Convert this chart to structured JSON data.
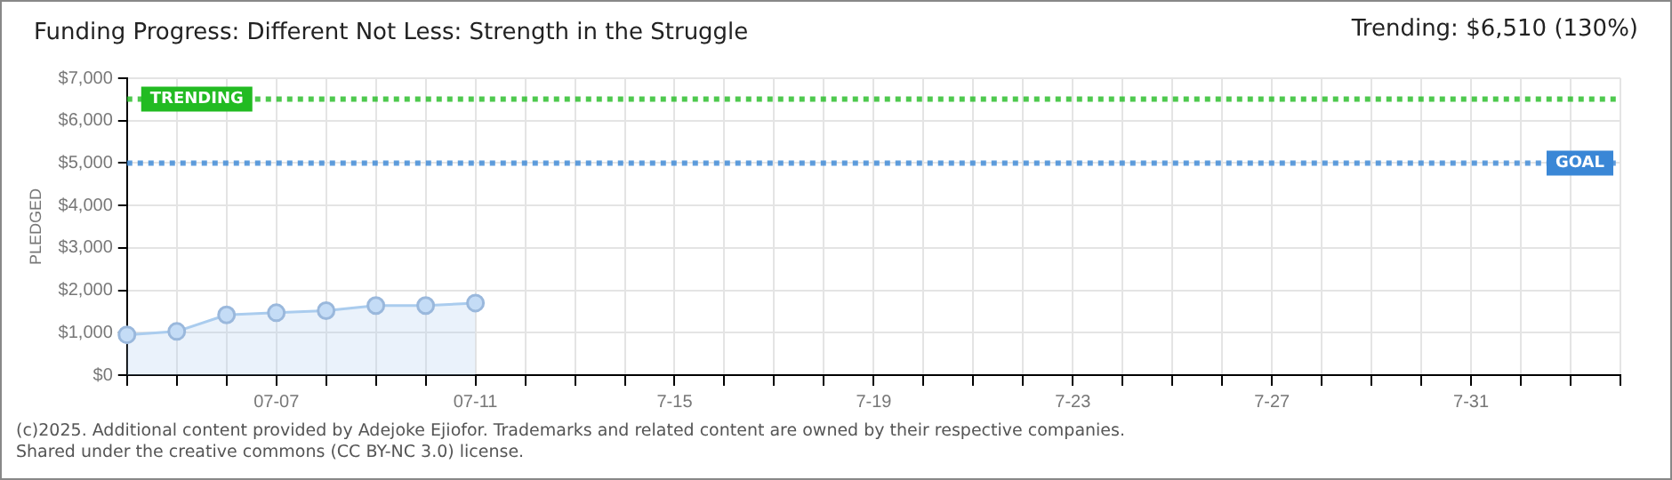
{
  "chart_data": {
    "type": "area",
    "title": "Funding Progress: Different Not Less: Strength in the Struggle",
    "subtitle": "Trending: $6,510 (130%)",
    "ylabel": "PLEDGED",
    "categories": [
      null,
      null,
      null,
      "07-07",
      null,
      null,
      null,
      "07-11",
      null,
      null,
      null,
      "7-15",
      null,
      null,
      null,
      "7-19",
      null,
      null,
      null,
      "7-23",
      null,
      null,
      null,
      "7-27",
      null,
      null,
      null,
      "7-31",
      null,
      null,
      null
    ],
    "series": [
      {
        "color": "#aaccee",
        "values": [
          950,
          1030,
          1420,
          1470,
          1520,
          1640,
          1640,
          1700,
          null,
          null,
          null,
          null,
          null,
          null,
          null,
          null,
          null,
          null,
          null,
          null,
          null,
          null,
          null,
          null,
          null,
          null,
          null,
          null,
          null,
          null,
          null
        ]
      }
    ],
    "ylim": [
      0,
      7000
    ],
    "yticks": [
      {
        "value": 0,
        "label": "$0"
      },
      {
        "value": 1000,
        "label": "$1,000"
      },
      {
        "value": 2000,
        "label": "$2,000"
      },
      {
        "value": 3000,
        "label": "$3,000"
      },
      {
        "value": 4000,
        "label": "$4,000"
      },
      {
        "value": 5000,
        "label": "$5,000"
      },
      {
        "value": 6000,
        "label": "$6,000"
      },
      {
        "value": 7000,
        "label": "$7,000"
      }
    ],
    "ref_lines": [
      {
        "axis": "y",
        "value": 6510,
        "label": "TRENDING",
        "color": "#22bb22",
        "line_style": "dotted"
      },
      {
        "axis": "y",
        "value": 5000,
        "label": "GOAL",
        "color": "#3a87d6",
        "line_style": "dotted"
      }
    ],
    "grid": true,
    "marker": "circle",
    "legend": false,
    "annotations": [
      "(c)2025. Additional content provided by Adejoke Ejiofor. Trademarks and related content are owned by their respective companies.",
      "Shared under the creative commons (CC BY-NC 3.0) license."
    ]
  }
}
